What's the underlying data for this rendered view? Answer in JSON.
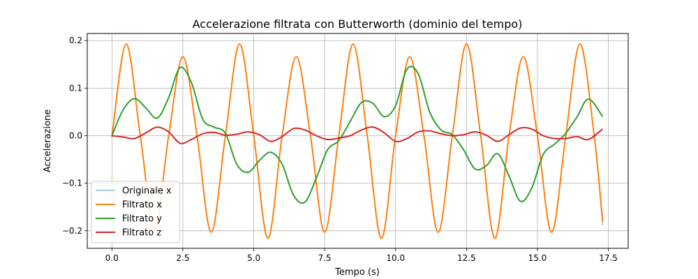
{
  "chart_data": {
    "type": "line",
    "title": "Accelerazione filtrata con Butterworth (dominio del tempo)",
    "xlabel": "Tempo (s)",
    "ylabel": "Accelerazione",
    "xlim": [
      -0.87,
      18.2
    ],
    "ylim": [
      -0.237,
      0.215
    ],
    "xticks": [
      0.0,
      2.5,
      5.0,
      7.5,
      10.0,
      12.5,
      15.0,
      17.5
    ],
    "xtick_labels": [
      "0.0",
      "2.5",
      "5.0",
      "7.5",
      "10.0",
      "12.5",
      "15.0",
      "17.5"
    ],
    "yticks": [
      -0.2,
      -0.1,
      0.0,
      0.1,
      0.2
    ],
    "ytick_labels": [
      "−0.2",
      "−0.1",
      "0.0",
      "0.1",
      "0.2"
    ],
    "grid": true,
    "legend_position": "lower-left",
    "series": [
      {
        "name": "Originale x",
        "color": "#1f77b4",
        "opacity": 0.5,
        "linewidth": 1.5,
        "x": [
          0.0,
          0.5,
          1.0,
          1.5,
          2.0,
          2.5,
          3.0,
          3.5,
          4.0,
          4.5,
          5.0,
          5.5,
          6.0,
          6.5,
          7.0,
          7.5,
          8.0,
          8.5,
          9.0,
          9.5,
          10.0,
          10.5,
          11.0,
          11.5,
          12.0,
          12.5,
          13.0,
          13.5,
          14.0,
          14.5,
          15.0,
          15.5,
          16.0,
          16.5,
          17.0,
          17.3
        ],
        "y": [
          -0.003,
          0.193,
          0.0,
          -0.196,
          0.0,
          0.166,
          0.0,
          -0.203,
          0.0,
          0.193,
          0.0,
          -0.216,
          0.0,
          0.166,
          0.0,
          -0.203,
          0.0,
          0.193,
          0.0,
          -0.216,
          0.0,
          0.166,
          0.0,
          -0.203,
          0.0,
          0.193,
          0.0,
          -0.216,
          0.0,
          0.166,
          0.0,
          -0.203,
          0.0,
          0.193,
          0.0,
          -0.188
        ]
      },
      {
        "name": "Filtrato x",
        "color": "#ff7f0e",
        "opacity": 1,
        "linewidth": 2,
        "x": [
          0.0,
          0.5,
          1.0,
          1.5,
          2.0,
          2.5,
          3.0,
          3.5,
          4.0,
          4.5,
          5.0,
          5.5,
          6.0,
          6.5,
          7.0,
          7.5,
          8.0,
          8.5,
          9.0,
          9.5,
          10.0,
          10.5,
          11.0,
          11.5,
          12.0,
          12.5,
          13.0,
          13.5,
          14.0,
          14.5,
          15.0,
          15.5,
          16.0,
          16.5,
          17.0,
          17.3
        ],
        "y": [
          -0.003,
          0.193,
          0.0,
          -0.196,
          0.0,
          0.166,
          0.0,
          -0.203,
          0.0,
          0.193,
          0.0,
          -0.216,
          0.0,
          0.166,
          0.0,
          -0.203,
          0.0,
          0.193,
          0.0,
          -0.216,
          0.0,
          0.166,
          0.0,
          -0.203,
          0.0,
          0.193,
          0.0,
          -0.216,
          0.0,
          0.166,
          0.0,
          -0.203,
          0.0,
          0.193,
          0.0,
          -0.18
        ]
      },
      {
        "name": "Filtrato y",
        "color": "#2ca02c",
        "opacity": 1,
        "linewidth": 2,
        "x": [
          0.0,
          0.4,
          0.8,
          1.2,
          1.6,
          2.0,
          2.4,
          2.8,
          3.2,
          3.6,
          4.0,
          4.4,
          4.8,
          5.2,
          5.6,
          6.0,
          6.4,
          6.8,
          7.2,
          7.6,
          8.0,
          8.4,
          8.8,
          9.2,
          9.6,
          10.0,
          10.4,
          10.8,
          11.2,
          11.6,
          12.0,
          12.4,
          12.8,
          13.2,
          13.6,
          14.0,
          14.4,
          14.8,
          15.2,
          15.6,
          16.0,
          16.4,
          16.8,
          17.3
        ],
        "y": [
          0.0,
          0.055,
          0.078,
          0.058,
          0.037,
          0.08,
          0.143,
          0.112,
          0.035,
          0.018,
          0.005,
          -0.06,
          -0.077,
          -0.052,
          -0.035,
          -0.06,
          -0.125,
          -0.14,
          -0.09,
          -0.03,
          -0.01,
          0.03,
          0.07,
          0.068,
          0.04,
          0.063,
          0.14,
          0.13,
          0.05,
          0.012,
          0.002,
          -0.03,
          -0.07,
          -0.063,
          -0.038,
          -0.085,
          -0.138,
          -0.11,
          -0.04,
          -0.018,
          0.005,
          0.04,
          0.077,
          0.04
        ]
      },
      {
        "name": "Filtrato z",
        "color": "#d62728",
        "opacity": 1,
        "linewidth": 2,
        "x": [
          0.0,
          0.4,
          0.8,
          1.2,
          1.6,
          2.0,
          2.4,
          2.8,
          3.2,
          3.6,
          4.0,
          4.4,
          4.8,
          5.2,
          5.6,
          6.0,
          6.4,
          6.8,
          7.2,
          7.6,
          8.0,
          8.4,
          8.8,
          9.2,
          9.6,
          10.0,
          10.4,
          10.8,
          11.2,
          11.6,
          12.0,
          12.4,
          12.8,
          13.2,
          13.6,
          14.0,
          14.4,
          14.8,
          15.2,
          15.6,
          16.0,
          16.4,
          16.8,
          17.3
        ],
        "y": [
          0.0,
          -0.003,
          -0.006,
          0.006,
          0.018,
          0.008,
          -0.016,
          -0.008,
          0.004,
          0.007,
          0.001,
          0.003,
          0.008,
          0.002,
          -0.012,
          -0.002,
          0.015,
          0.012,
          0.0,
          -0.008,
          -0.005,
          0.0,
          0.012,
          0.018,
          0.006,
          -0.012,
          -0.006,
          0.008,
          0.01,
          0.004,
          0.0,
          0.002,
          0.008,
          0.001,
          -0.012,
          0.002,
          0.016,
          0.014,
          0.0,
          -0.006,
          -0.006,
          -0.002,
          -0.008,
          0.014
        ]
      }
    ]
  }
}
